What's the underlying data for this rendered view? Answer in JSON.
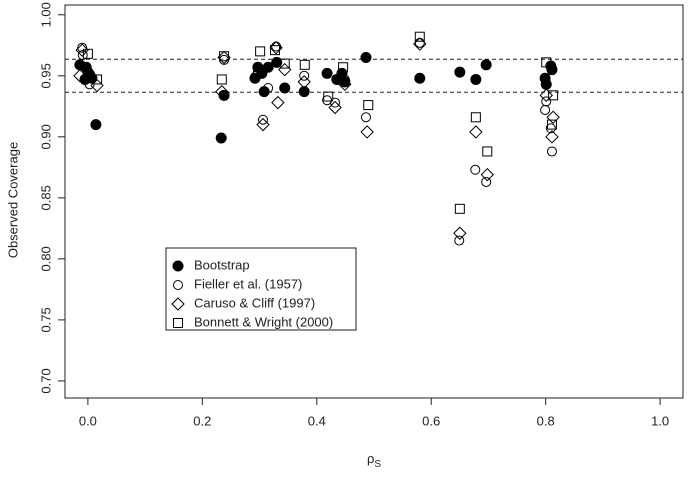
{
  "chart_data": {
    "type": "scatter",
    "xlabel": {
      "symbol": "ρ",
      "subscript": "S"
    },
    "ylabel": "Observed Coverage",
    "xlim": [
      -0.04,
      1.04
    ],
    "ylim": [
      0.686,
      1.008
    ],
    "xticks": [
      {
        "value": 0,
        "label": "0.0"
      },
      0.2,
      0.4,
      0.6,
      0.8,
      {
        "value": 1,
        "label": "1.0"
      }
    ],
    "yticks": [
      {
        "value": 0.7,
        "label": "0.70"
      },
      0.75,
      {
        "value": 0.8,
        "label": "0.80"
      },
      0.85,
      {
        "value": 0.9,
        "label": "0.90"
      },
      0.95,
      {
        "value": 1,
        "label": "1.00"
      }
    ],
    "reference_lines": [
      0.9635,
      0.9365
    ],
    "series": [
      {
        "name": "Bootstrap",
        "marker": "filled-circle",
        "color": "#000000",
        "x": [
          -0.014,
          -0.003,
          0,
          0.003,
          0.007,
          -0.005,
          0.014,
          0.233,
          0.238,
          0.292,
          0.297,
          0.304,
          0.308,
          0.315,
          0.33,
          0.344,
          0.378,
          0.418,
          0.435,
          0.444,
          0.449,
          0.486,
          0.58,
          0.65,
          0.678,
          0.696,
          0.799,
          0.801,
          0.809,
          0.811
        ],
        "values": [
          0.959,
          0.957,
          0.953,
          0.951,
          0.948,
          0.947,
          0.91,
          0.899,
          0.934,
          0.948,
          0.957,
          0.952,
          0.937,
          0.957,
          0.961,
          0.94,
          0.937,
          0.952,
          0.947,
          0.952,
          0.945,
          0.965,
          0.948,
          0.953,
          0.947,
          0.959,
          0.948,
          0.943,
          0.958,
          0.955
        ]
      },
      {
        "name": "Fieller et al. (1957)",
        "marker": "circle",
        "color": "#000000",
        "x": [
          -0.01,
          -0.009,
          0.003,
          0.238,
          0.297,
          0.306,
          0.315,
          0.329,
          0.378,
          0.418,
          0.432,
          0.449,
          0.486,
          0.58,
          0.649,
          0.677,
          0.696,
          0.799,
          0.801,
          0.809,
          0.811
        ],
        "values": [
          0.973,
          0.967,
          0.943,
          0.963,
          0.953,
          0.914,
          0.94,
          0.974,
          0.95,
          0.93,
          0.928,
          0.947,
          0.916,
          0.977,
          0.815,
          0.873,
          0.863,
          0.922,
          0.929,
          0.907,
          0.888
        ]
      },
      {
        "name": "Caruso & Cliff (1997)",
        "marker": "diamond",
        "color": "#000000",
        "x": [
          -0.01,
          -0.014,
          0.016,
          0.238,
          0.234,
          0.296,
          0.306,
          0.332,
          0.329,
          0.344,
          0.378,
          0.432,
          0.449,
          0.488,
          0.58,
          0.65,
          0.678,
          0.698,
          0.801,
          0.811,
          0.813
        ],
        "values": [
          0.971,
          0.95,
          0.942,
          0.965,
          0.937,
          0.951,
          0.91,
          0.928,
          0.973,
          0.955,
          0.945,
          0.924,
          0.943,
          0.904,
          0.976,
          0.821,
          0.904,
          0.869,
          0.934,
          0.9,
          0.916
        ]
      },
      {
        "name": "Bonnett & Wright (2000)",
        "marker": "square",
        "color": "#000000",
        "x": [
          0,
          0.016,
          0.238,
          0.234,
          0.301,
          0.327,
          0.344,
          0.379,
          0.42,
          0.446,
          0.49,
          0.58,
          0.65,
          0.678,
          0.698,
          0.801,
          0.811,
          0.813
        ],
        "values": [
          0.968,
          0.947,
          0.966,
          0.947,
          0.97,
          0.971,
          0.96,
          0.959,
          0.933,
          0.957,
          0.926,
          0.982,
          0.841,
          0.916,
          0.888,
          0.961,
          0.91,
          0.934
        ]
      }
    ]
  }
}
